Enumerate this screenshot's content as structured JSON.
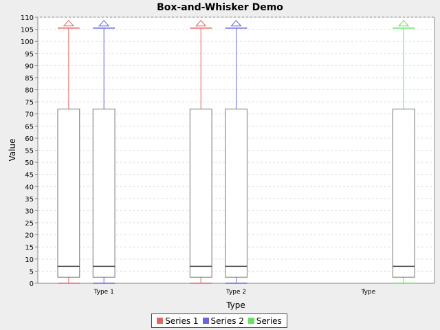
{
  "chart_data": {
    "type": "boxplot",
    "title": "Box-and-Whisker Demo",
    "xlabel": "Type",
    "ylabel": "Value",
    "ylim": [
      0,
      110
    ],
    "ytick_step": 5,
    "grid": true,
    "legend_position": "bottom",
    "categories": [
      "Type 1",
      "Type 2",
      "Type"
    ],
    "series": [
      {
        "name": "Series 1",
        "color": "#e06666",
        "boxes": [
          {
            "category": "Type 1",
            "min": 0,
            "q1": 2.5,
            "median": 7,
            "q3": 72,
            "max": 105.5,
            "outlier_marker": 107.5
          },
          {
            "category": "Type 2",
            "min": 0,
            "q1": 2.5,
            "median": 7,
            "q3": 72,
            "max": 105.5,
            "outlier_marker": 107.5
          }
        ]
      },
      {
        "name": "Series 2",
        "color": "#6666e0",
        "boxes": [
          {
            "category": "Type 1",
            "min": 0,
            "q1": 2.5,
            "median": 7,
            "q3": 72,
            "max": 105.5,
            "outlier_marker": 107.5
          },
          {
            "category": "Type 2",
            "min": 0,
            "q1": 2.5,
            "median": 7,
            "q3": 72,
            "max": 105.5,
            "outlier_marker": 107.5
          }
        ]
      },
      {
        "name": "Series",
        "color": "#66e066",
        "boxes": [
          {
            "category": "Type",
            "min": 0,
            "q1": 2.5,
            "median": 7,
            "q3": 72,
            "max": 105.5,
            "outlier_marker": 107.5
          }
        ]
      }
    ]
  }
}
